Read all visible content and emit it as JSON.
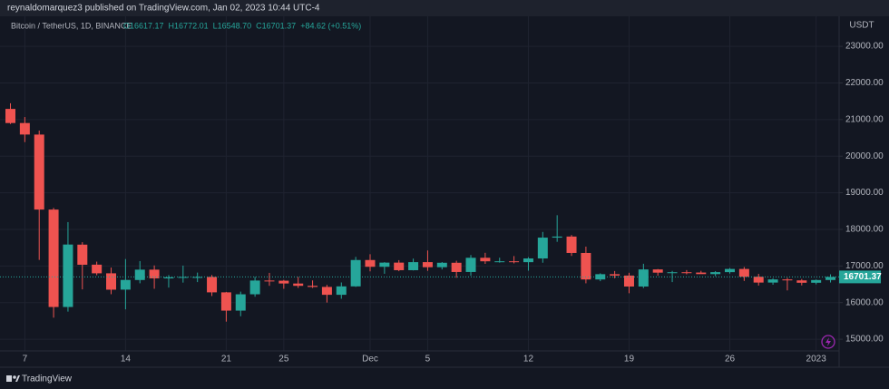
{
  "chart_data": {
    "type": "candlestick",
    "published": "reynaldomarquez3 published on TradingView.com, Jan 02, 2023 10:44 UTC-4",
    "symbol": "Bitcoin / TetherUS, 1D, BINANCE",
    "ohlc_line": [
      "O16617.17",
      "H16772.01",
      "L16548.70",
      "C16701.37",
      "+84.62 (+0.51%)"
    ],
    "currency": "USDT",
    "brand": "TradingView",
    "up_color": "#26a69a",
    "down_color": "#ef5350",
    "grid": true,
    "categories": [
      null,
      "7",
      null,
      null,
      null,
      null,
      null,
      null,
      "14",
      null,
      null,
      null,
      null,
      null,
      null,
      "21",
      null,
      null,
      null,
      "25",
      null,
      null,
      null,
      null,
      null,
      "Dec",
      null,
      null,
      null,
      "5",
      null,
      null,
      null,
      null,
      null,
      null,
      "12",
      null,
      null,
      null,
      null,
      null,
      null,
      "19",
      null,
      null,
      null,
      null,
      null,
      null,
      "26",
      null,
      null,
      null,
      null,
      null,
      "2023",
      null
    ],
    "open": [
      21291,
      20905,
      20590,
      18541,
      15880,
      17583,
      17036,
      16800,
      16354,
      16617,
      16900,
      16661,
      16692,
      16700,
      16700,
      16280,
      15781,
      16227,
      16603,
      16598,
      16521,
      16458,
      16428,
      16213,
      16443,
      17163,
      16978,
      17092,
      16885,
      17105,
      16967,
      17088,
      16836,
      17224,
      17128,
      17128,
      17104,
      17206,
      17775,
      17804,
      17356,
      16632,
      16776,
      16738,
      16439,
      16906,
      16818,
      16829,
      16821,
      16778,
      16832,
      16919,
      16706,
      16547,
      16633,
      16607,
      16542,
      16617.17
    ],
    "high": [
      21446,
      21069,
      20700,
      18587,
      18199,
      17650,
      17119,
      16957,
      17190,
      17134,
      17015,
      16751,
      17011,
      16820,
      16753,
      16292,
      16300,
      16706,
      16812,
      16619,
      16701,
      16606,
      16483,
      16550,
      17249,
      17320,
      17105,
      17159,
      17202,
      17424,
      17107,
      17143,
      17299,
      17360,
      17227,
      17271,
      17242,
      17930,
      18387,
      17846,
      17529,
      16800,
      16863,
      16815,
      17061,
      16917,
      16866,
      16888,
      16868,
      16860,
      16944,
      16972,
      16785,
      16664,
      16677,
      16644,
      16631,
      16772.01
    ],
    "low": [
      20879,
      20384,
      17166,
      15588,
      15754,
      16361,
      16748,
      16229,
      15815,
      16527,
      16378,
      16410,
      16546,
      16560,
      16180,
      15480,
      15627,
      16160,
      16458,
      16377,
      16400,
      16400,
      16001,
      16105,
      16429,
      16855,
      16787,
      16858,
      16878,
      16867,
      16906,
      16678,
      16733,
      17058,
      17091,
      17071,
      16871,
      17089,
      17660,
      17275,
      16527,
      16585,
      16663,
      16256,
      16397,
      16735,
      16560,
      16772,
      16794,
      16721,
      16791,
      16592,
      16465,
      16488,
      16333,
      16470,
      16499,
      16548.7
    ],
    "close": [
      20905,
      20591,
      18541,
      15880,
      17586,
      17034,
      16800,
      16353,
      16619,
      16900,
      16662,
      16692,
      16700,
      16700,
      16280,
      15781,
      16227,
      16603,
      16598,
      16522,
      16458,
      16428,
      16213,
      16443,
      17163,
      16978,
      17092,
      16885,
      17105,
      16967,
      17088,
      16836,
      17224,
      17128,
      17128,
      17104,
      17206,
      17775,
      17804,
      17356,
      16632,
      16776,
      16738,
      16439,
      16906,
      16818,
      16829,
      16821,
      16778,
      16832,
      16919,
      16706,
      16547,
      16633,
      16607,
      16542,
      16616,
      16701.37
    ],
    "last_price": 16701.37,
    "ylim": [
      14680,
      23820
    ],
    "yticks": [
      {
        "value": 15000,
        "label": "15000.00"
      },
      {
        "value": 16000,
        "label": "16000.00"
      },
      {
        "value": 17000,
        "label": "17000.00"
      },
      {
        "value": 18000,
        "label": "18000.00"
      },
      {
        "value": 19000,
        "label": "19000.00"
      },
      {
        "value": 20000,
        "label": "20000.00"
      },
      {
        "value": 21000,
        "label": "21000.00"
      },
      {
        "value": 22000,
        "label": "22000.00"
      },
      {
        "value": 23000,
        "label": "23000.00"
      }
    ]
  }
}
